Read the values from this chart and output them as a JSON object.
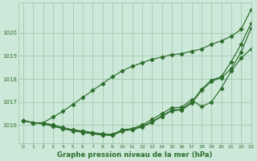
{
  "xlabel": "Graphe pression niveau de la mer (hPa)",
  "bg_color": "#cce8d8",
  "grid_color": "#99c4aa",
  "line_color": "#2d6e2d",
  "xlim": [
    -0.5,
    23
  ],
  "ylim": [
    1015.2,
    1021.3
  ],
  "yticks": [
    1016,
    1017,
    1018,
    1019,
    1020
  ],
  "xticks": [
    0,
    1,
    2,
    3,
    4,
    5,
    6,
    7,
    8,
    9,
    10,
    11,
    12,
    13,
    14,
    15,
    16,
    17,
    18,
    19,
    20,
    21,
    22,
    23
  ],
  "line1": [
    1016.2,
    1016.1,
    1016.1,
    1016.0,
    1015.85,
    1015.78,
    1015.72,
    1015.65,
    1015.6,
    1015.58,
    1015.78,
    1015.82,
    1015.95,
    1016.15,
    1016.4,
    1016.65,
    1016.7,
    1017.0,
    1017.55,
    1017.95,
    1018.1,
    1018.75,
    1019.5,
    1020.4
  ],
  "line2": [
    1016.2,
    1016.1,
    1016.1,
    1016.0,
    1015.9,
    1015.8,
    1015.75,
    1015.68,
    1015.62,
    1015.6,
    1015.8,
    1015.85,
    1016.0,
    1016.25,
    1016.5,
    1016.75,
    1016.78,
    1017.1,
    1016.8,
    1017.0,
    1017.6,
    1018.35,
    1018.9,
    1019.3
  ],
  "line3": [
    1016.2,
    1016.1,
    1016.05,
    1015.95,
    1015.85,
    1015.75,
    1015.68,
    1015.62,
    1015.57,
    1015.55,
    1015.75,
    1015.8,
    1015.92,
    1016.12,
    1016.38,
    1016.62,
    1016.65,
    1016.95,
    1017.5,
    1017.9,
    1018.05,
    1018.45,
    1019.15,
    1020.2
  ],
  "line4": [
    1016.2,
    1016.1,
    1016.1,
    1016.35,
    1016.6,
    1016.9,
    1017.2,
    1017.5,
    1017.8,
    1018.1,
    1018.35,
    1018.55,
    1018.7,
    1018.85,
    1018.95,
    1019.05,
    1019.1,
    1019.2,
    1019.3,
    1019.5,
    1019.65,
    1019.85,
    1020.15,
    1021.0
  ]
}
